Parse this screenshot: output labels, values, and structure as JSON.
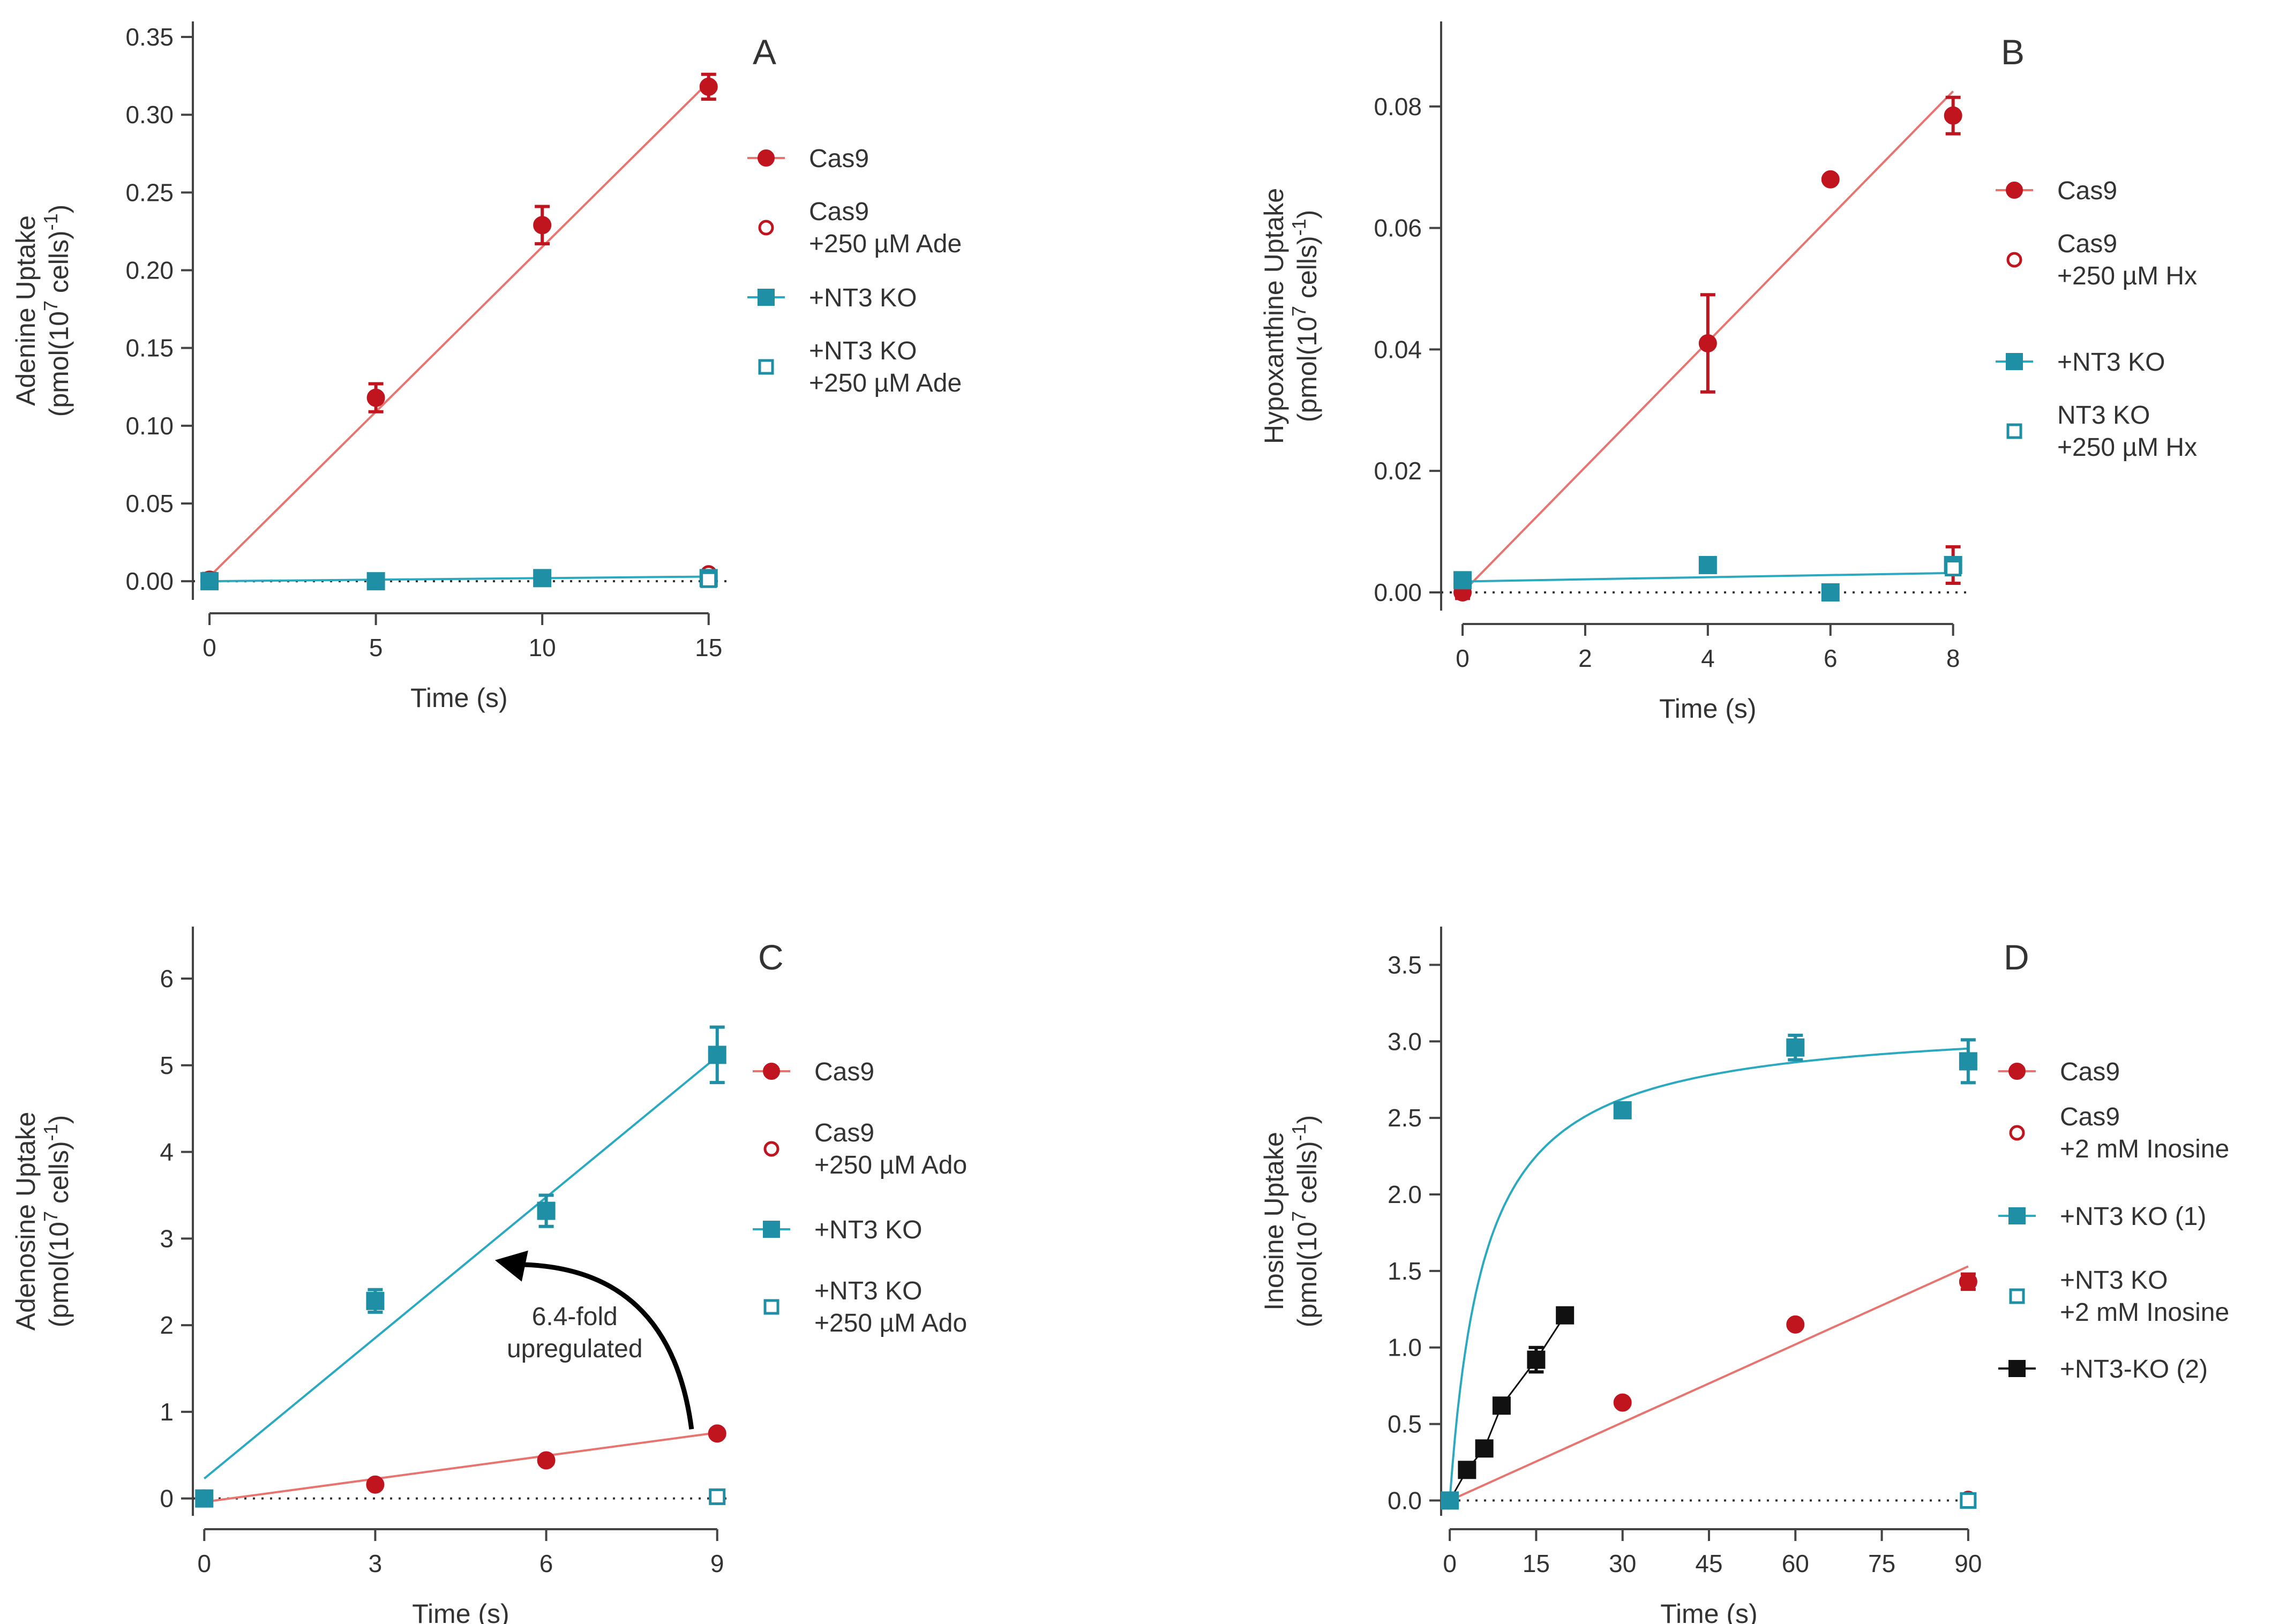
{
  "colors": {
    "red": "#c0141e",
    "red_line": "#e8736f",
    "teal": "#1f8fa5",
    "teal_line": "#2aa9c0",
    "black": "#111111",
    "axis": "#444444",
    "text": "#333333"
  },
  "chart_data": [
    {
      "panel": "A",
      "type": "scatter",
      "ylabel1": "Adenine Uptake",
      "ylabel2": "(pmol(10",
      "ylabel_sup1": "7",
      "ylabel3": " cells)",
      "ylabel_sup2": "-1",
      "ylabel4": ")",
      "xlabel": "Time (s)",
      "xlim": [
        -0.5,
        15.6
      ],
      "ylim": [
        -0.012,
        0.36
      ],
      "xticks": [
        0,
        5,
        10,
        15
      ],
      "xtick_labels": [
        "0",
        "5",
        "10",
        "15"
      ],
      "yticks": [
        0,
        0.05,
        0.1,
        0.15,
        0.2,
        0.25,
        0.3,
        0.35
      ],
      "ytick_labels": [
        "0.00",
        "0.05",
        "0.10",
        "0.15",
        "0.20",
        "0.25",
        "0.30",
        "0.35"
      ],
      "zero_line": true,
      "series": [
        {
          "name": "Cas9",
          "legend": [
            "Cas9"
          ],
          "marker": "circle",
          "filled": true,
          "color": "red",
          "x": [
            0,
            5,
            10,
            15
          ],
          "y": [
            0.001,
            0.118,
            0.229,
            0.318
          ],
          "err": [
            0.004,
            0.009,
            0.012,
            0.008
          ],
          "fit": {
            "kind": "line",
            "x0": 0,
            "y0": 0.003,
            "x1": 15,
            "y1": 0.321
          }
        },
        {
          "name": "Cas9 +250 µM Ade",
          "legend": [
            "Cas9",
            "+250 µM Ade"
          ],
          "marker": "circle",
          "filled": false,
          "color": "red",
          "x": [
            15
          ],
          "y": [
            0.005
          ],
          "err": [
            0
          ]
        },
        {
          "name": "+NT3 KO",
          "legend": [
            "+NT3 KO"
          ],
          "marker": "square",
          "filled": true,
          "color": "teal",
          "x": [
            0,
            5,
            10,
            15
          ],
          "y": [
            0.0,
            0.0,
            0.002,
            0.002
          ],
          "err": [
            0.002,
            0.002,
            0.002,
            0.002
          ],
          "fit": {
            "kind": "line",
            "x0": 0,
            "y0": 0.0,
            "x1": 15,
            "y1": 0.003
          }
        },
        {
          "name": "+NT3 KO +250 µM Ade",
          "legend": [
            "+NT3 KO",
            "+250 µM Ade"
          ],
          "marker": "square",
          "filled": false,
          "color": "teal",
          "x": [
            15
          ],
          "y": [
            0.001
          ],
          "err": [
            0
          ]
        }
      ]
    },
    {
      "panel": "B",
      "type": "scatter",
      "ylabel1": "Hypoxanthine Uptake",
      "ylabel2": "(pmol(10",
      "ylabel_sup1": "7",
      "ylabel3": " cells)",
      "ylabel_sup2": "-1",
      "ylabel4": ")",
      "xlabel": "Time (s)",
      "xlim": [
        -0.35,
        8.3
      ],
      "ylim": [
        -0.003,
        0.094
      ],
      "xticks": [
        0,
        2,
        4,
        6,
        8
      ],
      "xtick_labels": [
        "0",
        "2",
        "4",
        "6",
        "8"
      ],
      "yticks": [
        0,
        0.02,
        0.04,
        0.06,
        0.08
      ],
      "ytick_labels": [
        "0.00",
        "0.02",
        "0.04",
        "0.06",
        "0.08"
      ],
      "zero_line": true,
      "series": [
        {
          "name": "Cas9",
          "legend": [
            "Cas9"
          ],
          "marker": "circle",
          "filled": true,
          "color": "red",
          "x": [
            0,
            4,
            6,
            8
          ],
          "y": [
            0.0,
            0.041,
            0.068,
            0.0785
          ],
          "err": [
            0.001,
            0.008,
            0,
            0.003
          ],
          "fit": {
            "kind": "line",
            "x0": 0,
            "y0": 0.0,
            "x1": 8,
            "y1": 0.0825
          }
        },
        {
          "name": "Cas9 +250 µM Hx",
          "legend": [
            "Cas9",
            "+250 µM Hx"
          ],
          "marker": "circle",
          "filled": false,
          "color": "red",
          "x": [
            8
          ],
          "y": [
            0.0045
          ],
          "err": [
            0.003
          ]
        },
        {
          "name": "+NT3 KO",
          "legend": [
            "+NT3 KO"
          ],
          "marker": "square",
          "filled": true,
          "color": "teal",
          "x": [
            0,
            4,
            6,
            8
          ],
          "y": [
            0.002,
            0.0045,
            0.0,
            0.0045
          ],
          "err": [
            0,
            0,
            0,
            0
          ],
          "fit": {
            "kind": "line",
            "x0": 0,
            "y0": 0.0018,
            "x1": 8,
            "y1": 0.0032
          }
        },
        {
          "name": "NT3 KO +250 µM Hx",
          "legend": [
            "NT3 KO",
            "+250 µM Hx"
          ],
          "marker": "square",
          "filled": false,
          "color": "teal",
          "x": [
            8
          ],
          "y": [
            0.004
          ],
          "err": [
            0
          ]
        }
      ]
    },
    {
      "panel": "C",
      "type": "scatter",
      "ylabel1": "Adenosine Uptake",
      "ylabel2": "(pmol(10",
      "ylabel_sup1": "7",
      "ylabel3": " cells)",
      "ylabel_sup2": "-1",
      "ylabel4": ")",
      "xlabel": "Time (s)",
      "xlim": [
        -0.2,
        9.2
      ],
      "ylim": [
        -0.2,
        6.6
      ],
      "xticks": [
        0,
        3,
        6,
        9
      ],
      "xtick_labels": [
        "0",
        "3",
        "6",
        "9"
      ],
      "yticks": [
        0,
        1,
        2,
        3,
        4,
        5,
        6
      ],
      "ytick_labels": [
        "0",
        "1",
        "2",
        "3",
        "4",
        "5",
        "6"
      ],
      "zero_line": true,
      "annotation": {
        "lines": [
          "6.4-fold",
          "upregulated"
        ],
        "arrow_from": [
          8.55,
          0.8
        ],
        "arrow_to": [
          5.1,
          2.75
        ],
        "text_at": [
          6.5,
          2.0
        ]
      },
      "series": [
        {
          "name": "Cas9",
          "legend": [
            "Cas9"
          ],
          "marker": "circle",
          "filled": true,
          "color": "red",
          "x": [
            0,
            3,
            6,
            9
          ],
          "y": [
            0.0,
            0.16,
            0.44,
            0.75
          ],
          "err": [
            0,
            0,
            0,
            0
          ],
          "fit": {
            "kind": "line",
            "x0": 0,
            "y0": -0.04,
            "x1": 9,
            "y1": 0.76
          }
        },
        {
          "name": "Cas9 +250 µM Ado",
          "legend": [
            "Cas9",
            "+250 µM Ado"
          ],
          "marker": "circle",
          "filled": false,
          "color": "red",
          "x": [
            9
          ],
          "y": [
            0.02
          ],
          "err": [
            0
          ]
        },
        {
          "name": "+NT3 KO",
          "legend": [
            "+NT3 KO"
          ],
          "marker": "square",
          "filled": true,
          "color": "teal",
          "x": [
            0,
            3,
            6,
            9
          ],
          "y": [
            0.0,
            2.28,
            3.32,
            5.12
          ],
          "err": [
            0.05,
            0.13,
            0.18,
            0.32
          ],
          "fit": {
            "kind": "line",
            "x0": 0,
            "y0": 0.23,
            "x1": 9,
            "y1": 5.1
          }
        },
        {
          "name": "+NT3 KO +250 µM Ado",
          "legend": [
            "+NT3 KO",
            "+250 µM Ado"
          ],
          "marker": "square",
          "filled": false,
          "color": "teal",
          "x": [
            9
          ],
          "y": [
            0.02
          ],
          "err": [
            0
          ]
        }
      ]
    },
    {
      "panel": "D",
      "type": "scatter",
      "ylabel1": "Inosine Uptake",
      "ylabel2": "(pmol(10",
      "ylabel_sup1": "7",
      "ylabel3": " cells)",
      "ylabel_sup2": "-1",
      "ylabel4": ")",
      "xlabel": "Time (s)",
      "xlim": [
        -1.5,
        91.5
      ],
      "ylim": [
        -0.1,
        3.75
      ],
      "xticks": [
        0,
        15,
        30,
        45,
        60,
        75,
        90
      ],
      "xtick_labels": [
        "0",
        "15",
        "30",
        "45",
        "60",
        "75",
        "90"
      ],
      "yticks": [
        0,
        0.5,
        1,
        1.5,
        2,
        2.5,
        3,
        3.5
      ],
      "ytick_labels": [
        "0.0",
        "0.5",
        "1.0",
        "1.5",
        "2.0",
        "2.5",
        "3.0",
        "3.5"
      ],
      "zero_line": true,
      "series": [
        {
          "name": "Cas9",
          "legend": [
            "Cas9"
          ],
          "marker": "circle",
          "filled": true,
          "color": "red",
          "x": [
            0,
            30,
            60,
            90
          ],
          "y": [
            0.0,
            0.64,
            1.15,
            1.43
          ],
          "err": [
            0,
            0,
            0,
            0.05
          ],
          "fit": {
            "kind": "line",
            "x0": 0,
            "y0": 0.0,
            "x1": 90,
            "y1": 1.53
          }
        },
        {
          "name": "Cas9 +2 mM Inosine",
          "legend": [
            "Cas9",
            "+2 mM Inosine"
          ],
          "marker": "circle",
          "filled": false,
          "color": "red",
          "x": [
            90
          ],
          "y": [
            0.01
          ],
          "err": [
            0
          ]
        },
        {
          "name": "+NT3 KO (1)",
          "legend": [
            "+NT3 KO (1)"
          ],
          "marker": "square",
          "filled": true,
          "color": "teal",
          "x": [
            0,
            30,
            60,
            90
          ],
          "y": [
            0.0,
            2.55,
            2.96,
            2.87
          ],
          "err": [
            0,
            0,
            0.08,
            0.14
          ],
          "fit": {
            "kind": "hyperbola",
            "vmax": 3.15,
            "km": 6.0,
            "x0": 0,
            "x1": 90
          }
        },
        {
          "name": "+NT3 KO +2 mM Inosine",
          "legend": [
            "+NT3 KO",
            "+2 mM Inosine"
          ],
          "marker": "square",
          "filled": false,
          "color": "teal",
          "x": [
            90
          ],
          "y": [
            0.0
          ],
          "err": [
            0
          ]
        },
        {
          "name": "+NT3-KO (2)",
          "legend": [
            "+NT3-KO (2)"
          ],
          "marker": "square",
          "filled": true,
          "color": "black",
          "x": [
            3,
            6,
            9,
            15,
            20
          ],
          "y": [
            0.2,
            0.34,
            0.62,
            0.92,
            1.21
          ],
          "err": [
            0,
            0,
            0,
            0.08,
            0
          ],
          "fit": {
            "kind": "polyline"
          }
        }
      ]
    }
  ]
}
